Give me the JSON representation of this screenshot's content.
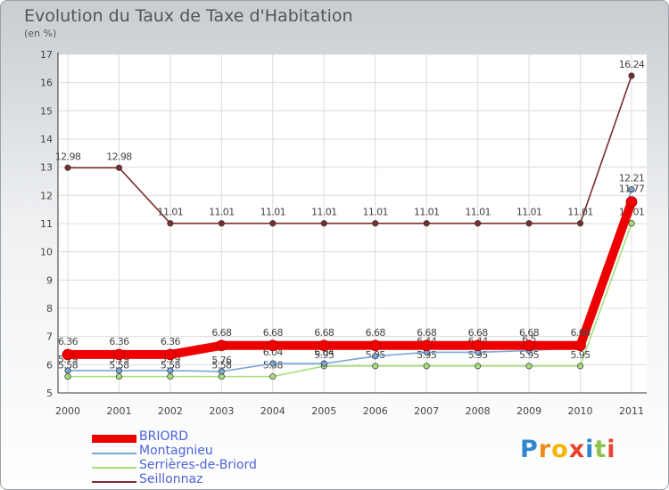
{
  "header": {
    "title": "Evolution du Taux de Taxe d'Habitation",
    "unit": "(en %)"
  },
  "brand": {
    "letters": [
      "P",
      "r",
      "o",
      "x",
      "i",
      "t",
      "i"
    ],
    "colors": [
      "#2f86cf",
      "#f08a17",
      "#f4b400",
      "#e8432e",
      "#2f86cf",
      "#8bc34a",
      "#e8432e"
    ]
  },
  "chart_data": {
    "type": "line",
    "x": [
      "2000",
      "2001",
      "2002",
      "2003",
      "2004",
      "2005",
      "2006",
      "2007",
      "2008",
      "2009",
      "2010",
      "2011"
    ],
    "ylim": [
      5,
      17
    ],
    "yticks": [
      "5",
      "6",
      "7",
      "8",
      "9",
      "10",
      "11",
      "12",
      "13",
      "14",
      "15",
      "16",
      "17"
    ],
    "series": [
      {
        "name": "Seillonnaz",
        "color": "#7a2e2e",
        "values": [
          12.98,
          12.98,
          11.01,
          11.01,
          11.01,
          11.01,
          11.01,
          11.01,
          11.01,
          11.01,
          11.01,
          16.24
        ],
        "labels": [
          "12.98",
          "12.98",
          "11.01",
          "11.01",
          "11.01",
          "11.01",
          "11.01",
          "11.01",
          "11.01",
          "11.01",
          "11.01",
          "16.24"
        ]
      },
      {
        "name": "Serrières-de-Briord",
        "color": "#a6de7a",
        "values": [
          5.58,
          5.58,
          5.58,
          5.58,
          5.58,
          5.95,
          5.95,
          5.95,
          5.95,
          5.95,
          5.95,
          11.01
        ],
        "labels": [
          "5.58",
          "5.58",
          "5.58",
          "5.58",
          "5.58",
          "5.95",
          "5.95",
          "5.95",
          "5.95",
          "5.95",
          "5.95",
          "11.01"
        ]
      },
      {
        "name": "Montagnieu",
        "color": "#7aa6d6",
        "values": [
          5.79,
          5.79,
          5.79,
          5.76,
          6.04,
          6.04,
          6.3,
          6.44,
          6.44,
          6.5,
          6.6,
          12.21
        ],
        "labels": [
          "5.79",
          "5.79",
          "5.79",
          "5.76",
          "6.04",
          "6.04",
          "",
          "6.44",
          "6.44",
          "6.5",
          "",
          "12.21"
        ]
      },
      {
        "name": "BRIORD",
        "color": "#ee0000",
        "values": [
          6.36,
          6.36,
          6.36,
          6.68,
          6.68,
          6.68,
          6.68,
          6.68,
          6.68,
          6.68,
          6.68,
          11.77
        ],
        "labels": [
          "6.36",
          "6.36",
          "6.36",
          "6.68",
          "6.68",
          "6.68",
          "6.68",
          "6.68",
          "6.68",
          "6.68",
          "6.68",
          "11.77"
        ]
      }
    ],
    "legend": {
      "placement": "bottom-left",
      "entries": [
        "BRIORD",
        "Montagnieu",
        "Serrières-de-Briord",
        "Seillonnaz"
      ]
    }
  }
}
